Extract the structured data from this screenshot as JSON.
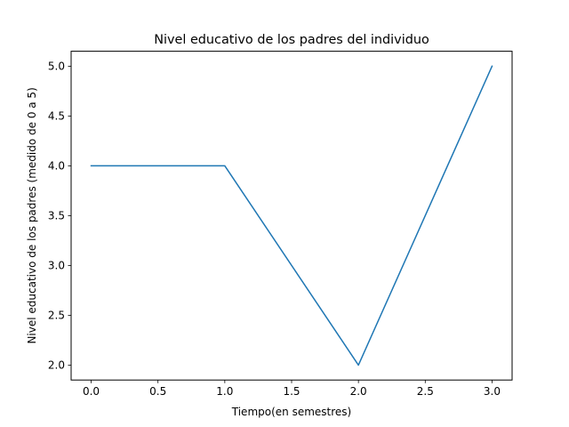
{
  "chart_data": {
    "type": "line",
    "title": "Nivel educativo de los padres del individuo",
    "xlabel": "Tiempo(en semestres)",
    "ylabel": "Nivel educativo de los padres (medido de 0 a 5)",
    "series": [
      {
        "color": "#1f77b4",
        "x": [
          0.0,
          1.0,
          2.0,
          3.0
        ],
        "y": [
          4.0,
          4.0,
          2.0,
          5.0
        ]
      }
    ],
    "xlim": [
      -0.15,
      3.15
    ],
    "ylim": [
      1.85,
      5.15
    ],
    "xticks": [
      0.0,
      0.5,
      1.0,
      1.5,
      2.0,
      2.5,
      3.0
    ],
    "xtick_labels": [
      "0.0",
      "0.5",
      "1.0",
      "1.5",
      "2.0",
      "2.5",
      "3.0"
    ],
    "yticks": [
      2.0,
      2.5,
      3.0,
      3.5,
      4.0,
      4.5,
      5.0
    ],
    "ytick_labels": [
      "2.0",
      "2.5",
      "3.0",
      "3.5",
      "4.0",
      "4.5",
      "5.0"
    ],
    "grid": false,
    "legend": "none"
  }
}
